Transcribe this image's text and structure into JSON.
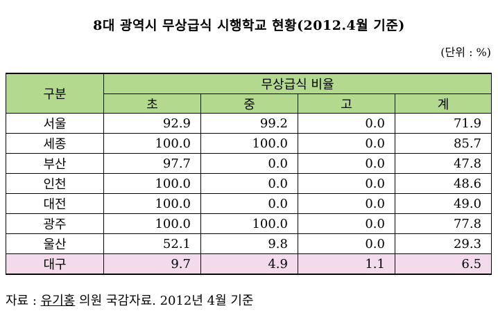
{
  "title": "8대 광역시 무상급식 시행학교 현황(2012.4월 기준)",
  "unit_note": "(단위 : %)",
  "table": {
    "row_header": "구분",
    "group_header": "무상급식 비율",
    "columns": [
      "초",
      "중",
      "고",
      "계"
    ],
    "rows": [
      {
        "name": "서울",
        "values": [
          "92.9",
          "99.2",
          "0.0",
          "71.9"
        ]
      },
      {
        "name": "세종",
        "values": [
          "100.0",
          "100.0",
          "0.0",
          "85.7"
        ]
      },
      {
        "name": "부산",
        "values": [
          "97.7",
          "0.0",
          "0.0",
          "47.8"
        ]
      },
      {
        "name": "인천",
        "values": [
          "100.0",
          "0.0",
          "0.0",
          "48.6"
        ]
      },
      {
        "name": "대전",
        "values": [
          "100.0",
          "0.0",
          "0.0",
          "49.0"
        ]
      },
      {
        "name": "광주",
        "values": [
          "100.0",
          "100.0",
          "0.0",
          "77.8"
        ]
      },
      {
        "name": "울산",
        "values": [
          "52.1",
          "9.8",
          "0.0",
          "29.3"
        ]
      },
      {
        "name": "대구",
        "values": [
          "9.7",
          "4.9",
          "1.1",
          "6.5"
        ]
      }
    ]
  },
  "colors": {
    "header_bg": "#b3d98f",
    "highlight_row_bg": "#f3dbeb"
  },
  "source": {
    "prefix": "자료 : ",
    "underlined": "유기홍",
    "rest": " 의원 국감자료. 2012년 4월 기준"
  }
}
